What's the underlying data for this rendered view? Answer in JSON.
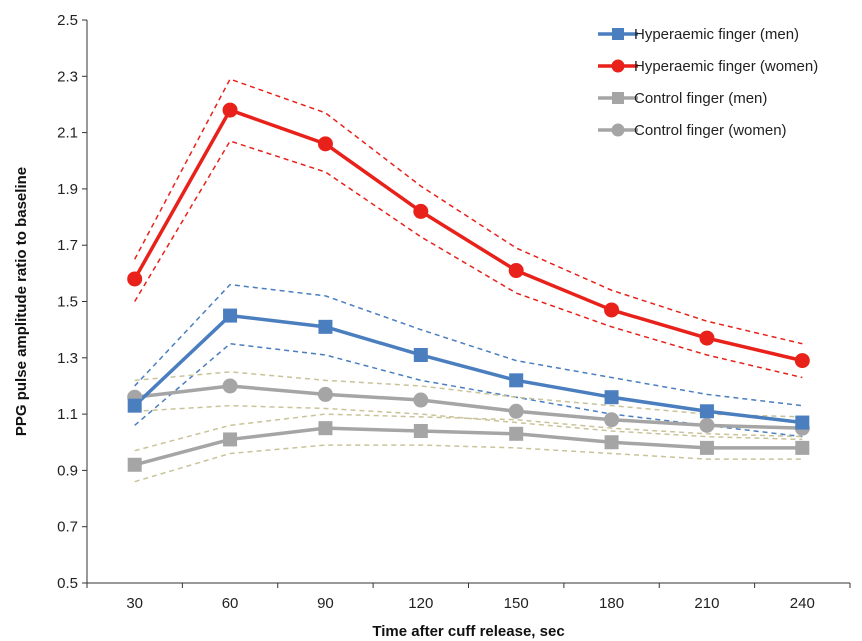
{
  "chart_data": {
    "type": "line",
    "xlabel": "Time after cuff release, sec",
    "ylabel": "PPG pulse amplitude ratio to baseline",
    "x": [
      30,
      60,
      90,
      120,
      150,
      180,
      210,
      240
    ],
    "xlim": [
      15,
      255
    ],
    "ylim": [
      0.5,
      2.5
    ],
    "yticks": [
      "0.5",
      "0.7",
      "0.9",
      "1.1",
      "1.3",
      "1.5",
      "1.7",
      "1.9",
      "2.1",
      "2.3",
      "2.5"
    ],
    "xticks": [
      "30",
      "60",
      "90",
      "120",
      "150",
      "180",
      "210",
      "240"
    ],
    "grid": false,
    "legend_position": "top-right",
    "series": [
      {
        "name": "Hyperaemic finger (men)",
        "color": "#4a7ebf",
        "marker": "square",
        "values": [
          1.13,
          1.45,
          1.41,
          1.31,
          1.22,
          1.16,
          1.11,
          1.07
        ],
        "upper": [
          1.2,
          1.56,
          1.52,
          1.4,
          1.29,
          1.23,
          1.17,
          1.13
        ],
        "lower": [
          1.06,
          1.35,
          1.31,
          1.22,
          1.16,
          1.1,
          1.06,
          1.02
        ],
        "band_color": "#4a7ebf"
      },
      {
        "name": "Hyperaemic finger (women)",
        "color": "#e8211a",
        "marker": "circle",
        "values": [
          1.58,
          2.18,
          2.06,
          1.82,
          1.61,
          1.47,
          1.37,
          1.29
        ],
        "upper": [
          1.65,
          2.29,
          2.17,
          1.91,
          1.69,
          1.54,
          1.43,
          1.35
        ],
        "lower": [
          1.5,
          2.07,
          1.96,
          1.73,
          1.53,
          1.41,
          1.31,
          1.23
        ],
        "band_color": "#e8211a"
      },
      {
        "name": "Control finger (men)",
        "color": "#a5a5a5",
        "marker": "square",
        "values": [
          0.92,
          1.01,
          1.05,
          1.04,
          1.03,
          1.0,
          0.98,
          0.98
        ],
        "upper": [
          0.97,
          1.06,
          1.1,
          1.09,
          1.08,
          1.05,
          1.03,
          1.02
        ],
        "lower": [
          0.86,
          0.96,
          0.99,
          0.99,
          0.98,
          0.96,
          0.94,
          0.94
        ],
        "band_color": "#c9c39a"
      },
      {
        "name": "Control finger (women)",
        "color": "#a5a5a5",
        "marker": "circle",
        "values": [
          1.16,
          1.2,
          1.17,
          1.15,
          1.11,
          1.08,
          1.06,
          1.05
        ],
        "upper": [
          1.22,
          1.25,
          1.22,
          1.2,
          1.16,
          1.13,
          1.1,
          1.09
        ],
        "lower": [
          1.11,
          1.13,
          1.12,
          1.1,
          1.07,
          1.04,
          1.02,
          1.01
        ],
        "band_color": "#c9c39a"
      }
    ]
  }
}
